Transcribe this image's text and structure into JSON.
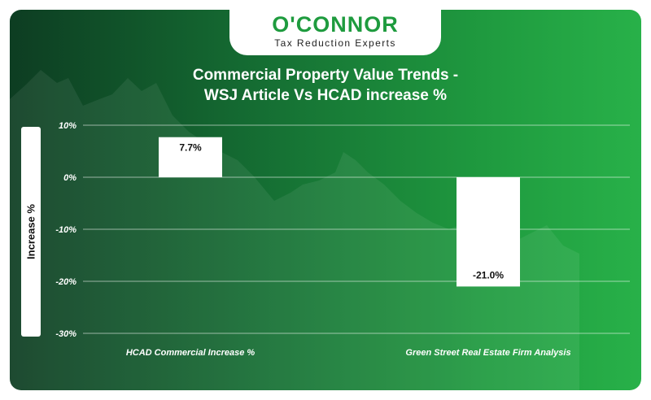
{
  "brand": {
    "name": "O'CONNOR",
    "tagline": "Tax Reduction Experts",
    "color": "#1e9b3e"
  },
  "chart_data": {
    "type": "bar",
    "title_line1": "Commercial Property Value Trends -",
    "title_line2": "WSJ Article Vs HCAD increase %",
    "ylabel": "Increase %",
    "categories": [
      "HCAD Commercial Increase %",
      "Green Street Real Estate Firm Analysis"
    ],
    "values": [
      7.7,
      -21.0
    ],
    "data_labels": [
      "7.7%",
      "-21.0%"
    ],
    "yticks": [
      10,
      0,
      -10,
      -20,
      -30
    ],
    "ytick_labels": [
      "10%",
      "0%",
      "-10%",
      "-20%",
      "-30%"
    ],
    "ylim": [
      -30,
      10
    ],
    "grid": true,
    "bar_color": "#ffffff"
  }
}
